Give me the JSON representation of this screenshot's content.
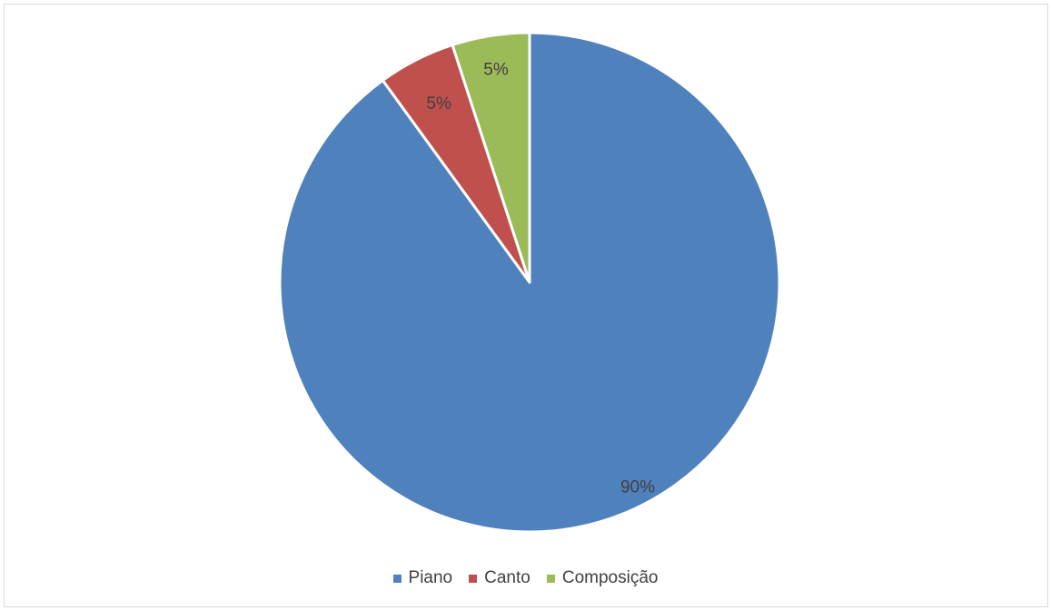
{
  "chart_data": {
    "type": "pie",
    "categories": [
      "Piano",
      "Canto",
      "Composição"
    ],
    "values": [
      90,
      5,
      5
    ],
    "data_labels": [
      "90%",
      "5%",
      "5%"
    ],
    "colors": [
      "#4F81BD",
      "#C0504D",
      "#9BBB59"
    ],
    "start_angle": "12 o'clock",
    "direction": "clockwise",
    "legend_position": "bottom",
    "title": ""
  }
}
